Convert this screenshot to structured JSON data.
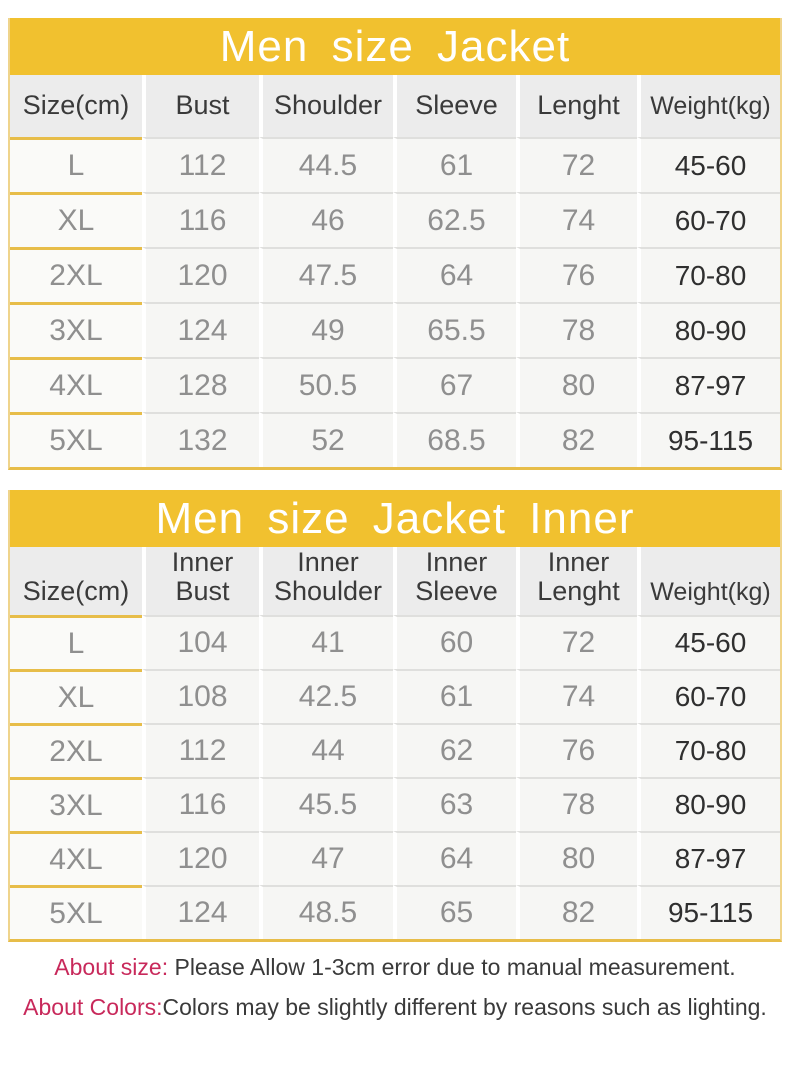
{
  "colors": {
    "band": "#F1C12F",
    "band_text": "#FFFFFF",
    "gold_line": "#E7BD49",
    "pale_gold": "#EFD48C",
    "header_bg": "#ECECEC",
    "row_bg": "#F6F6F4",
    "row_line": "#DFDFDD",
    "col_sep": "#FFFFFF",
    "text_dark": "#3A3A3A",
    "text_gray": "#8F8F8F",
    "text_weight": "#2F2F2F",
    "accent": "#C8295B"
  },
  "tables": [
    {
      "title": "Men size Jacket",
      "columns": [
        "Size(cm)",
        "Bust",
        "Shoulder",
        "Sleeve",
        "Lenght",
        "Weight(kg)"
      ],
      "rows": [
        [
          "L",
          "112",
          "44.5",
          "61",
          "72",
          "45-60"
        ],
        [
          "XL",
          "116",
          "46",
          "62.5",
          "74",
          "60-70"
        ],
        [
          "2XL",
          "120",
          "47.5",
          "64",
          "76",
          "70-80"
        ],
        [
          "3XL",
          "124",
          "49",
          "65.5",
          "78",
          "80-90"
        ],
        [
          "4XL",
          "128",
          "50.5",
          "67",
          "80",
          "87-97"
        ],
        [
          "5XL",
          "132",
          "52",
          "68.5",
          "82",
          "95-115"
        ]
      ]
    },
    {
      "title": "Men size Jacket Inner",
      "columns": [
        "Size(cm)",
        "Inner\nBust",
        "Inner\nShoulder",
        "Inner\nSleeve",
        "Inner\nLenght",
        "Weight(kg)"
      ],
      "rows": [
        [
          "L",
          "104",
          "41",
          "60",
          "72",
          "45-60"
        ],
        [
          "XL",
          "108",
          "42.5",
          "61",
          "74",
          "60-70"
        ],
        [
          "2XL",
          "112",
          "44",
          "62",
          "76",
          "70-80"
        ],
        [
          "3XL",
          "116",
          "45.5",
          "63",
          "78",
          "80-90"
        ],
        [
          "4XL",
          "120",
          "47",
          "64",
          "80",
          "87-97"
        ],
        [
          "5XL",
          "124",
          "48.5",
          "65",
          "82",
          "95-115"
        ]
      ]
    }
  ],
  "notes": [
    {
      "label": "About size:",
      "text": " Please Allow 1-3cm error due to manual measurement."
    },
    {
      "label": "About Colors:",
      "text": "Colors may be slightly different by reasons such as lighting."
    }
  ]
}
